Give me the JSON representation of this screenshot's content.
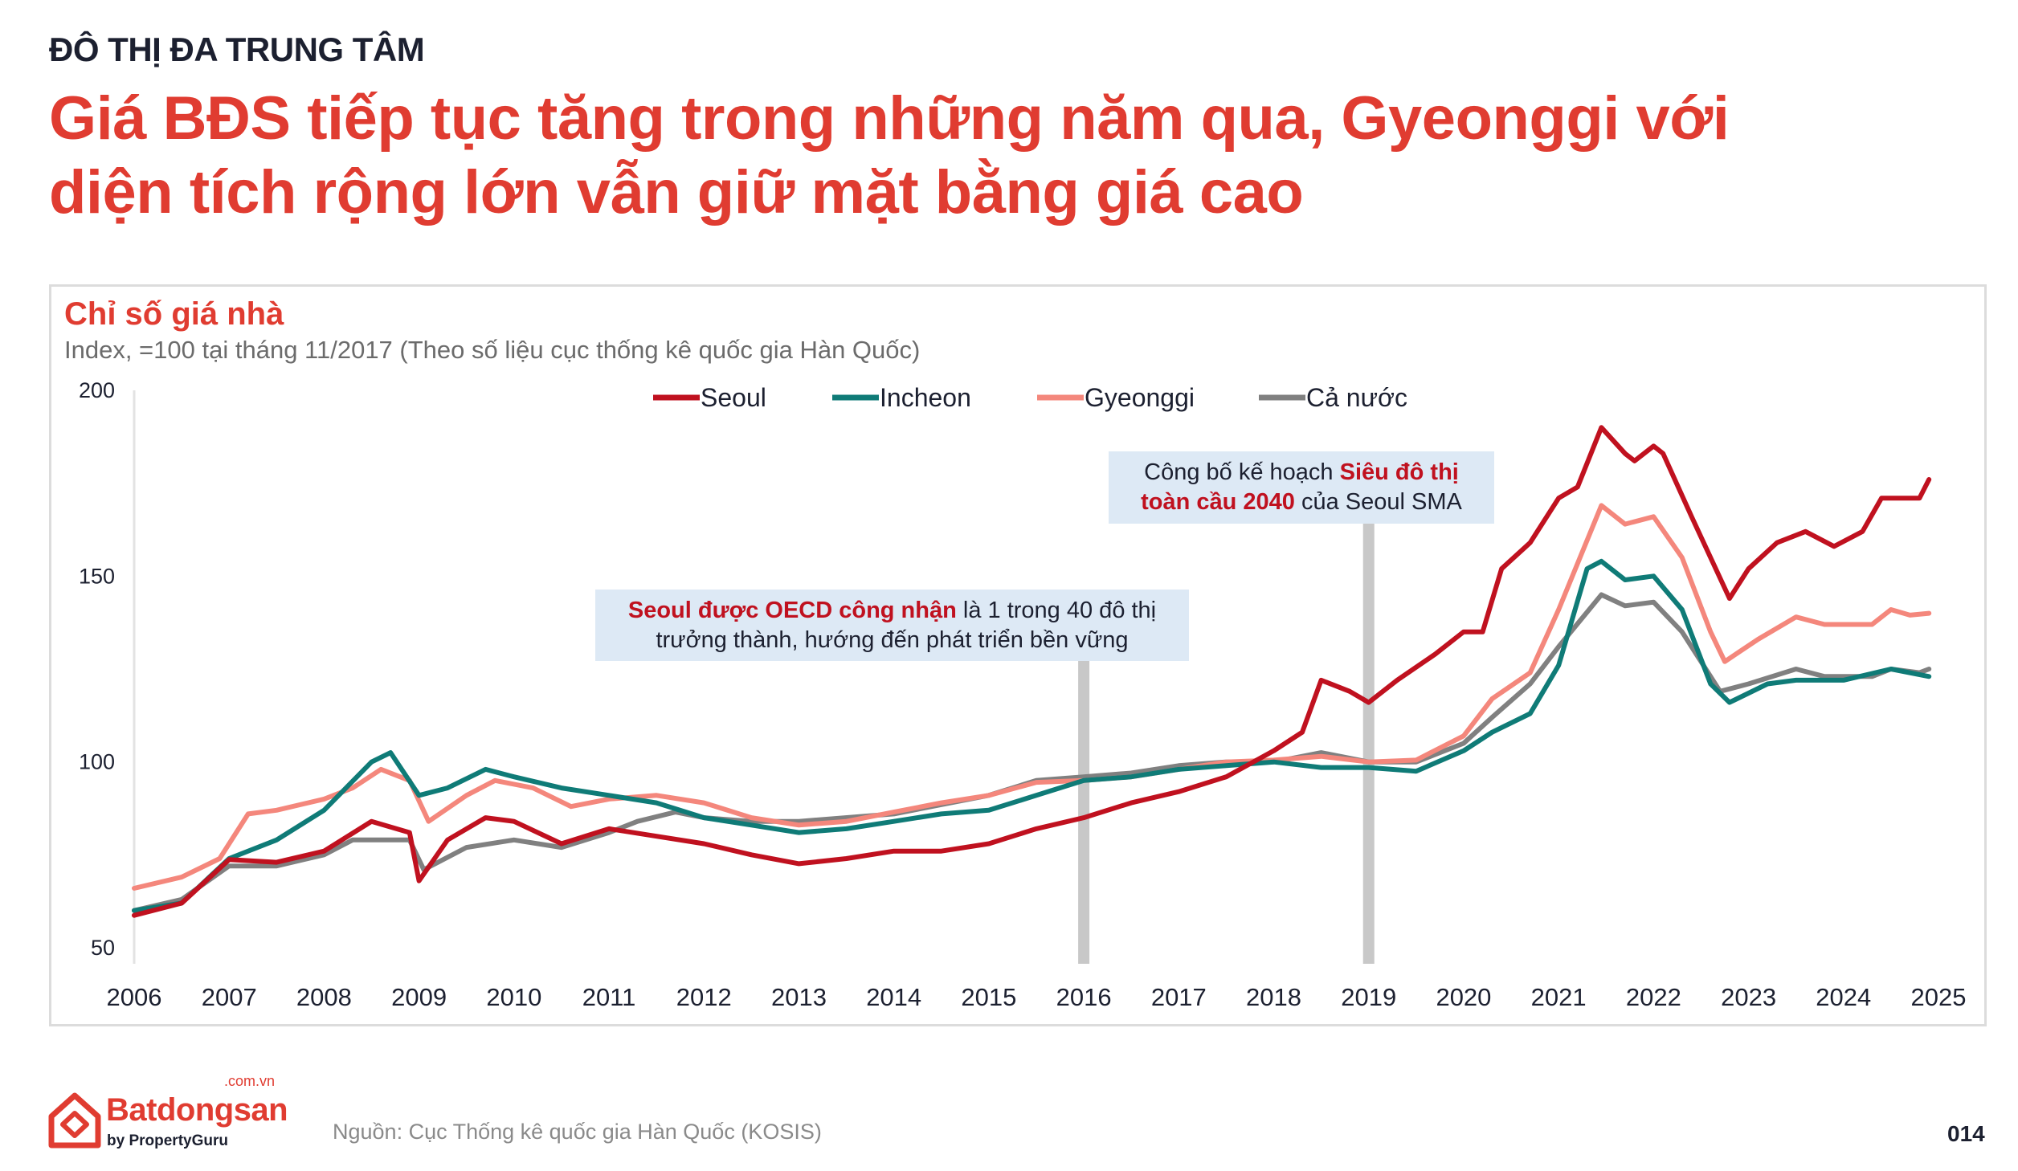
{
  "header": {
    "kicker": "ĐÔ THỊ ĐA TRUNG TÂM",
    "title_line1": "Giá BĐS tiếp tục tăng trong những năm qua, Gyeonggi với",
    "title_line2": "diện tích rộng lớn vẫn giữ mặt bằng giá cao"
  },
  "annotations": [
    {
      "highlight": "Seoul được OECD công nhận",
      "text": " là 1 trong 40 đô thị",
      "text2": "trưởng thành, hướng đến phát triển bền vững",
      "x": 2016
    },
    {
      "text": "Công bố kế hoạch ",
      "highlight": "Siêu đô thị",
      "highlight2": "toàn cầu 2040",
      "text2": " của Seoul SMA",
      "x": 2019
    }
  ],
  "footer": {
    "logo_name": "Batdongsan",
    "logo_domain": ".com.vn",
    "logo_by": "by PropertyGuru",
    "source": "Nguồn: Cục Thống kê quốc gia Hàn Quốc (KOSIS)",
    "page_number": "014"
  },
  "chart_data": {
    "type": "line",
    "title": "Chỉ số giá nhà",
    "subtitle": "Index, =100 tại tháng 11/2017 (Theo số liệu cục thống kê quốc gia Hàn Quốc)",
    "xlabel": "",
    "ylabel": "",
    "xlim": [
      2006,
      2025
    ],
    "ylim": [
      50,
      200
    ],
    "xticks": [
      "2006",
      "2007",
      "2008",
      "2009",
      "2010",
      "2011",
      "2012",
      "2013",
      "2014",
      "2015",
      "2016",
      "2017",
      "2018",
      "2019",
      "2020",
      "2021",
      "2022",
      "2023",
      "2024",
      "2025"
    ],
    "yticks": [
      "200",
      "150",
      "100",
      "50"
    ],
    "grid": false,
    "legend_position": "top",
    "series": [
      {
        "name": "Seoul",
        "color": "#c0111f",
        "points": [
          [
            2006,
            58.7
          ],
          [
            2006.5,
            62
          ],
          [
            2007,
            73.7
          ],
          [
            2007.5,
            73
          ],
          [
            2008,
            76
          ],
          [
            2008.5,
            84
          ],
          [
            2008.9,
            81
          ],
          [
            2009,
            68
          ],
          [
            2009.3,
            79
          ],
          [
            2009.7,
            85
          ],
          [
            2010,
            84
          ],
          [
            2010.5,
            78
          ],
          [
            2011,
            82
          ],
          [
            2011.5,
            80
          ],
          [
            2012,
            78
          ],
          [
            2012.5,
            75
          ],
          [
            2013,
            72.6
          ],
          [
            2013.5,
            74
          ],
          [
            2014,
            76
          ],
          [
            2014.5,
            76
          ],
          [
            2015,
            78
          ],
          [
            2015.5,
            82
          ],
          [
            2016,
            85
          ],
          [
            2016.5,
            89
          ],
          [
            2017,
            92
          ],
          [
            2017.5,
            96
          ],
          [
            2018,
            103
          ],
          [
            2018.3,
            108
          ],
          [
            2018.5,
            122
          ],
          [
            2018.8,
            119
          ],
          [
            2019,
            116
          ],
          [
            2019.3,
            122
          ],
          [
            2019.7,
            129
          ],
          [
            2020,
            135
          ],
          [
            2020.2,
            135
          ],
          [
            2020.4,
            152
          ],
          [
            2020.7,
            159
          ],
          [
            2021,
            171
          ],
          [
            2021.2,
            174
          ],
          [
            2021.45,
            190
          ],
          [
            2021.7,
            183
          ],
          [
            2021.8,
            181
          ],
          [
            2022,
            185
          ],
          [
            2022.1,
            183
          ],
          [
            2022.4,
            166
          ],
          [
            2022.8,
            144
          ],
          [
            2023,
            152
          ],
          [
            2023.3,
            159
          ],
          [
            2023.6,
            162
          ],
          [
            2023.9,
            158
          ],
          [
            2024.2,
            162
          ],
          [
            2024.4,
            171
          ],
          [
            2024.8,
            171
          ],
          [
            2024.9,
            176
          ]
        ]
      },
      {
        "name": "Incheon",
        "color": "#0f7b77",
        "points": [
          [
            2006,
            60
          ],
          [
            2006.5,
            62
          ],
          [
            2007,
            74
          ],
          [
            2007.5,
            79
          ],
          [
            2008,
            87
          ],
          [
            2008.5,
            100
          ],
          [
            2008.7,
            102.5
          ],
          [
            2009,
            91
          ],
          [
            2009.3,
            93
          ],
          [
            2009.7,
            98
          ],
          [
            2010,
            96
          ],
          [
            2010.5,
            93
          ],
          [
            2011,
            91
          ],
          [
            2011.5,
            89
          ],
          [
            2012,
            85
          ],
          [
            2012.5,
            83
          ],
          [
            2013,
            81
          ],
          [
            2013.5,
            82
          ],
          [
            2014,
            84
          ],
          [
            2014.5,
            86
          ],
          [
            2015,
            87
          ],
          [
            2015.5,
            91
          ],
          [
            2016,
            95
          ],
          [
            2016.5,
            96
          ],
          [
            2017,
            98
          ],
          [
            2017.5,
            99
          ],
          [
            2018,
            100
          ],
          [
            2018.5,
            98.5
          ],
          [
            2019,
            98.5
          ],
          [
            2019.5,
            97.5
          ],
          [
            2020,
            103
          ],
          [
            2020.3,
            108
          ],
          [
            2020.7,
            113
          ],
          [
            2021,
            126
          ],
          [
            2021.3,
            152
          ],
          [
            2021.45,
            154
          ],
          [
            2021.7,
            149
          ],
          [
            2022,
            150
          ],
          [
            2022.3,
            141
          ],
          [
            2022.6,
            121
          ],
          [
            2022.8,
            116
          ],
          [
            2023.2,
            121
          ],
          [
            2023.5,
            122
          ],
          [
            2024,
            122
          ],
          [
            2024.5,
            125
          ],
          [
            2024.9,
            123
          ]
        ]
      },
      {
        "name": "Gyeonggi",
        "color": "#f4877c",
        "points": [
          [
            2006,
            66
          ],
          [
            2006.5,
            69
          ],
          [
            2006.9,
            74
          ],
          [
            2007.2,
            86
          ],
          [
            2007.5,
            87
          ],
          [
            2008,
            90
          ],
          [
            2008.3,
            93
          ],
          [
            2008.6,
            98
          ],
          [
            2008.9,
            95
          ],
          [
            2009.1,
            84
          ],
          [
            2009.5,
            91
          ],
          [
            2009.8,
            95
          ],
          [
            2010.2,
            93
          ],
          [
            2010.6,
            88
          ],
          [
            2011,
            90
          ],
          [
            2011.5,
            91
          ],
          [
            2012,
            89
          ],
          [
            2012.5,
            85
          ],
          [
            2013,
            83
          ],
          [
            2013.5,
            84
          ],
          [
            2014,
            86.5
          ],
          [
            2014.5,
            89
          ],
          [
            2015,
            91
          ],
          [
            2015.5,
            94.5
          ],
          [
            2016,
            95
          ],
          [
            2016.5,
            96
          ],
          [
            2017,
            98
          ],
          [
            2017.5,
            100
          ],
          [
            2018,
            100.5
          ],
          [
            2018.5,
            101.5
          ],
          [
            2019,
            100
          ],
          [
            2019.5,
            100.5
          ],
          [
            2020,
            107
          ],
          [
            2020.3,
            117
          ],
          [
            2020.7,
            124
          ],
          [
            2021,
            141
          ],
          [
            2021.45,
            169
          ],
          [
            2021.7,
            164
          ],
          [
            2022,
            166
          ],
          [
            2022.3,
            155
          ],
          [
            2022.6,
            135
          ],
          [
            2022.75,
            127
          ],
          [
            2023.1,
            133
          ],
          [
            2023.5,
            139
          ],
          [
            2023.8,
            137
          ],
          [
            2024.3,
            137
          ],
          [
            2024.5,
            141
          ],
          [
            2024.7,
            139.5
          ],
          [
            2024.9,
            140
          ]
        ]
      },
      {
        "name": "Cả nước",
        "color": "#808080",
        "points": [
          [
            2006,
            60
          ],
          [
            2006.5,
            63
          ],
          [
            2007,
            72
          ],
          [
            2007.5,
            72
          ],
          [
            2008,
            75
          ],
          [
            2008.3,
            79
          ],
          [
            2008.9,
            79
          ],
          [
            2009.05,
            71
          ],
          [
            2009.5,
            77
          ],
          [
            2010,
            79
          ],
          [
            2010.5,
            77
          ],
          [
            2011,
            81
          ],
          [
            2011.3,
            84
          ],
          [
            2011.7,
            86.5
          ],
          [
            2012,
            85
          ],
          [
            2012.5,
            84
          ],
          [
            2013,
            84
          ],
          [
            2014,
            86
          ],
          [
            2015,
            91
          ],
          [
            2015.5,
            95
          ],
          [
            2016,
            96
          ],
          [
            2016.5,
            97
          ],
          [
            2017,
            99
          ],
          [
            2017.5,
            100
          ],
          [
            2018,
            100
          ],
          [
            2018.5,
            102.5
          ],
          [
            2019,
            100
          ],
          [
            2019.5,
            100
          ],
          [
            2020,
            105
          ],
          [
            2020.3,
            112
          ],
          [
            2020.7,
            121
          ],
          [
            2021,
            131
          ],
          [
            2021.45,
            145
          ],
          [
            2021.7,
            142
          ],
          [
            2022,
            143
          ],
          [
            2022.3,
            135
          ],
          [
            2022.7,
            119
          ],
          [
            2023,
            121
          ],
          [
            2023.5,
            125
          ],
          [
            2023.8,
            123
          ],
          [
            2024.3,
            123
          ],
          [
            2024.5,
            125
          ],
          [
            2024.8,
            124
          ],
          [
            2024.9,
            125
          ]
        ]
      }
    ]
  }
}
